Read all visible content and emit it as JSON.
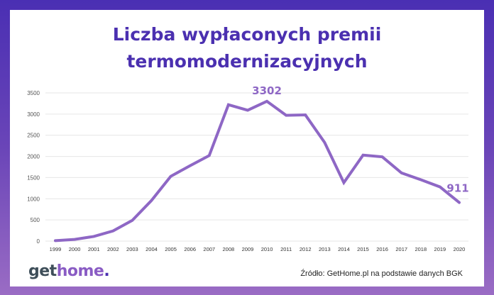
{
  "chart_data": {
    "type": "line",
    "title": "Liczba wypłaconych premii termomodernizacyjnych",
    "title_lines": [
      "Liczba wypłaconych premii",
      "termomodernizacyjnych"
    ],
    "categories": [
      "1999",
      "2000",
      "2001",
      "2002",
      "2003",
      "2004",
      "2005",
      "2006",
      "2007",
      "2008",
      "2009",
      "2010",
      "2011",
      "2012",
      "2013",
      "2014",
      "2015",
      "2016",
      "2017",
      "2018",
      "2019",
      "2020"
    ],
    "values": [
      10,
      40,
      110,
      240,
      490,
      960,
      1530,
      1780,
      2020,
      3220,
      3090,
      3302,
      2970,
      2980,
      2330,
      1380,
      2030,
      1990,
      1610,
      1450,
      1280,
      911
    ],
    "data_labels": [
      {
        "category": "2010",
        "text": "3302"
      },
      {
        "category": "2020",
        "text": "911"
      }
    ],
    "yticks": [
      "0",
      "500",
      "1000",
      "1500",
      "2000",
      "2500",
      "3000",
      "3500"
    ],
    "ylim": [
      0,
      3500
    ],
    "grid": true,
    "xlabel": "",
    "ylabel": "",
    "colors": {
      "line": "#8e67c5",
      "title": "#4b30b0",
      "grid": "#e6e6e6",
      "frame": "#5a3bb6"
    }
  },
  "footer": {
    "logo_parts": [
      "get",
      "home",
      "."
    ],
    "source": "Źródło: GetHome.pl na podstawie danych BGK"
  }
}
